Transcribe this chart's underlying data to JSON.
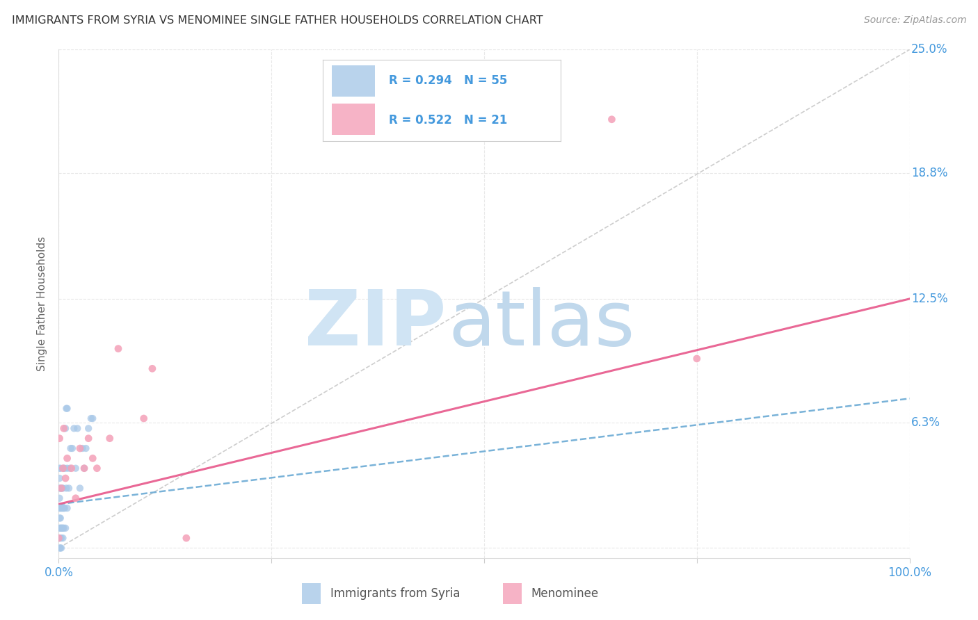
{
  "title": "IMMIGRANTS FROM SYRIA VS MENOMINEE SINGLE FATHER HOUSEHOLDS CORRELATION CHART",
  "source": "Source: ZipAtlas.com",
  "ylabel": "Single Father Households",
  "legend_labels": [
    "Immigrants from Syria",
    "Menominee"
  ],
  "legend_R": [
    0.294,
    0.522
  ],
  "legend_N": [
    55,
    21
  ],
  "blue_color": "#a8c8e8",
  "pink_color": "#f4a0b8",
  "blue_line_color": "#6aaad4",
  "pink_line_color": "#e86090",
  "title_color": "#333333",
  "axis_label_color": "#4499dd",
  "watermark_ZIP_color": "#d0e4f4",
  "watermark_atlas_color": "#c0d8ec",
  "blue_scatter_x": [
    0.0,
    0.001,
    0.001,
    0.001,
    0.001,
    0.001,
    0.001,
    0.001,
    0.001,
    0.001,
    0.002,
    0.002,
    0.002,
    0.002,
    0.002,
    0.002,
    0.002,
    0.003,
    0.003,
    0.003,
    0.003,
    0.003,
    0.004,
    0.004,
    0.004,
    0.005,
    0.005,
    0.005,
    0.005,
    0.006,
    0.006,
    0.006,
    0.007,
    0.007,
    0.008,
    0.008,
    0.009,
    0.009,
    0.01,
    0.01,
    0.01,
    0.012,
    0.013,
    0.014,
    0.016,
    0.018,
    0.02,
    0.022,
    0.025,
    0.028,
    0.03,
    0.032,
    0.035,
    0.038,
    0.04
  ],
  "blue_scatter_y": [
    0.005,
    0.0,
    0.005,
    0.01,
    0.015,
    0.02,
    0.025,
    0.03,
    0.035,
    0.04,
    0.0,
    0.005,
    0.01,
    0.015,
    0.02,
    0.03,
    0.04,
    0.0,
    0.005,
    0.01,
    0.02,
    0.03,
    0.01,
    0.02,
    0.03,
    0.005,
    0.01,
    0.02,
    0.03,
    0.01,
    0.02,
    0.04,
    0.02,
    0.04,
    0.01,
    0.06,
    0.03,
    0.07,
    0.02,
    0.04,
    0.07,
    0.03,
    0.04,
    0.05,
    0.05,
    0.06,
    0.04,
    0.06,
    0.03,
    0.05,
    0.04,
    0.05,
    0.06,
    0.065,
    0.065
  ],
  "pink_scatter_x": [
    0.0,
    0.001,
    0.003,
    0.005,
    0.006,
    0.008,
    0.01,
    0.015,
    0.02,
    0.025,
    0.03,
    0.035,
    0.04,
    0.045,
    0.06,
    0.07,
    0.1,
    0.11,
    0.15,
    0.65,
    0.75
  ],
  "pink_scatter_y": [
    0.005,
    0.055,
    0.03,
    0.04,
    0.06,
    0.035,
    0.045,
    0.04,
    0.025,
    0.05,
    0.04,
    0.055,
    0.045,
    0.04,
    0.055,
    0.1,
    0.065,
    0.09,
    0.005,
    0.215,
    0.095
  ],
  "blue_trendline_x": [
    0.0,
    1.0
  ],
  "blue_trendline_y": [
    0.022,
    0.075
  ],
  "pink_trendline_x": [
    0.0,
    1.0
  ],
  "pink_trendline_y": [
    0.022,
    0.125
  ],
  "diag_line_x": [
    0.0,
    1.0
  ],
  "diag_line_y": [
    0.0,
    0.25
  ],
  "xlim": [
    0.0,
    1.0
  ],
  "ylim": [
    -0.005,
    0.25
  ],
  "yticks": [
    0.0,
    0.063,
    0.125,
    0.188,
    0.25
  ],
  "ytick_labels": [
    "6.3%",
    "12.5%",
    "18.8%",
    "25.0%"
  ],
  "ytick_vals": [
    0.063,
    0.125,
    0.188,
    0.25
  ],
  "xticks": [
    0.0,
    0.25,
    0.5,
    0.75,
    1.0
  ],
  "xtick_labels": [
    "0.0%",
    "",
    "",
    "",
    "100.0%"
  ],
  "grid_color": "#e8e8e8",
  "bg_color": "#ffffff"
}
